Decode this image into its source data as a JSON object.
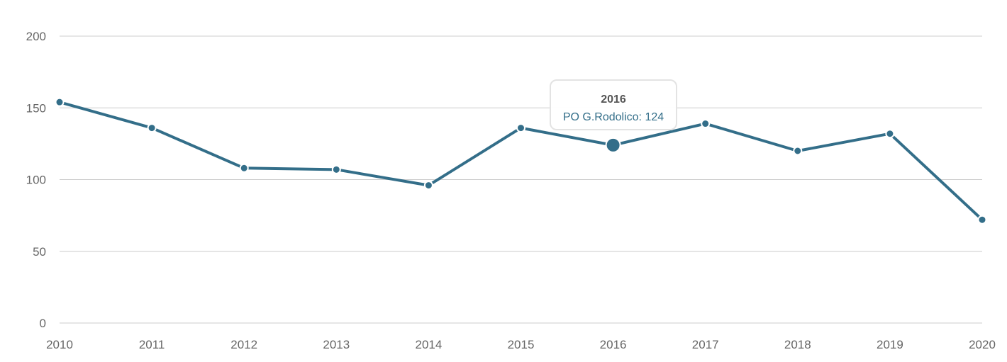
{
  "chart_data": {
    "type": "line",
    "x": [
      "2010",
      "2011",
      "2012",
      "2013",
      "2014",
      "2015",
      "2016",
      "2017",
      "2018",
      "2019",
      "2020"
    ],
    "series": [
      {
        "name": "PO G.Rodolico",
        "values": [
          154,
          136,
          108,
          107,
          96,
          136,
          124,
          139,
          120,
          132,
          72
        ]
      }
    ],
    "title": "",
    "xlabel": "",
    "ylabel": "",
    "ylim": [
      0,
      200
    ],
    "yticks": [
      "0",
      "50",
      "100",
      "150",
      "200"
    ],
    "grid": true,
    "series_color": "#336e89"
  },
  "tooltip": {
    "title": "2016",
    "body": "PO G.Rodolico: 124",
    "category_index": 6
  }
}
